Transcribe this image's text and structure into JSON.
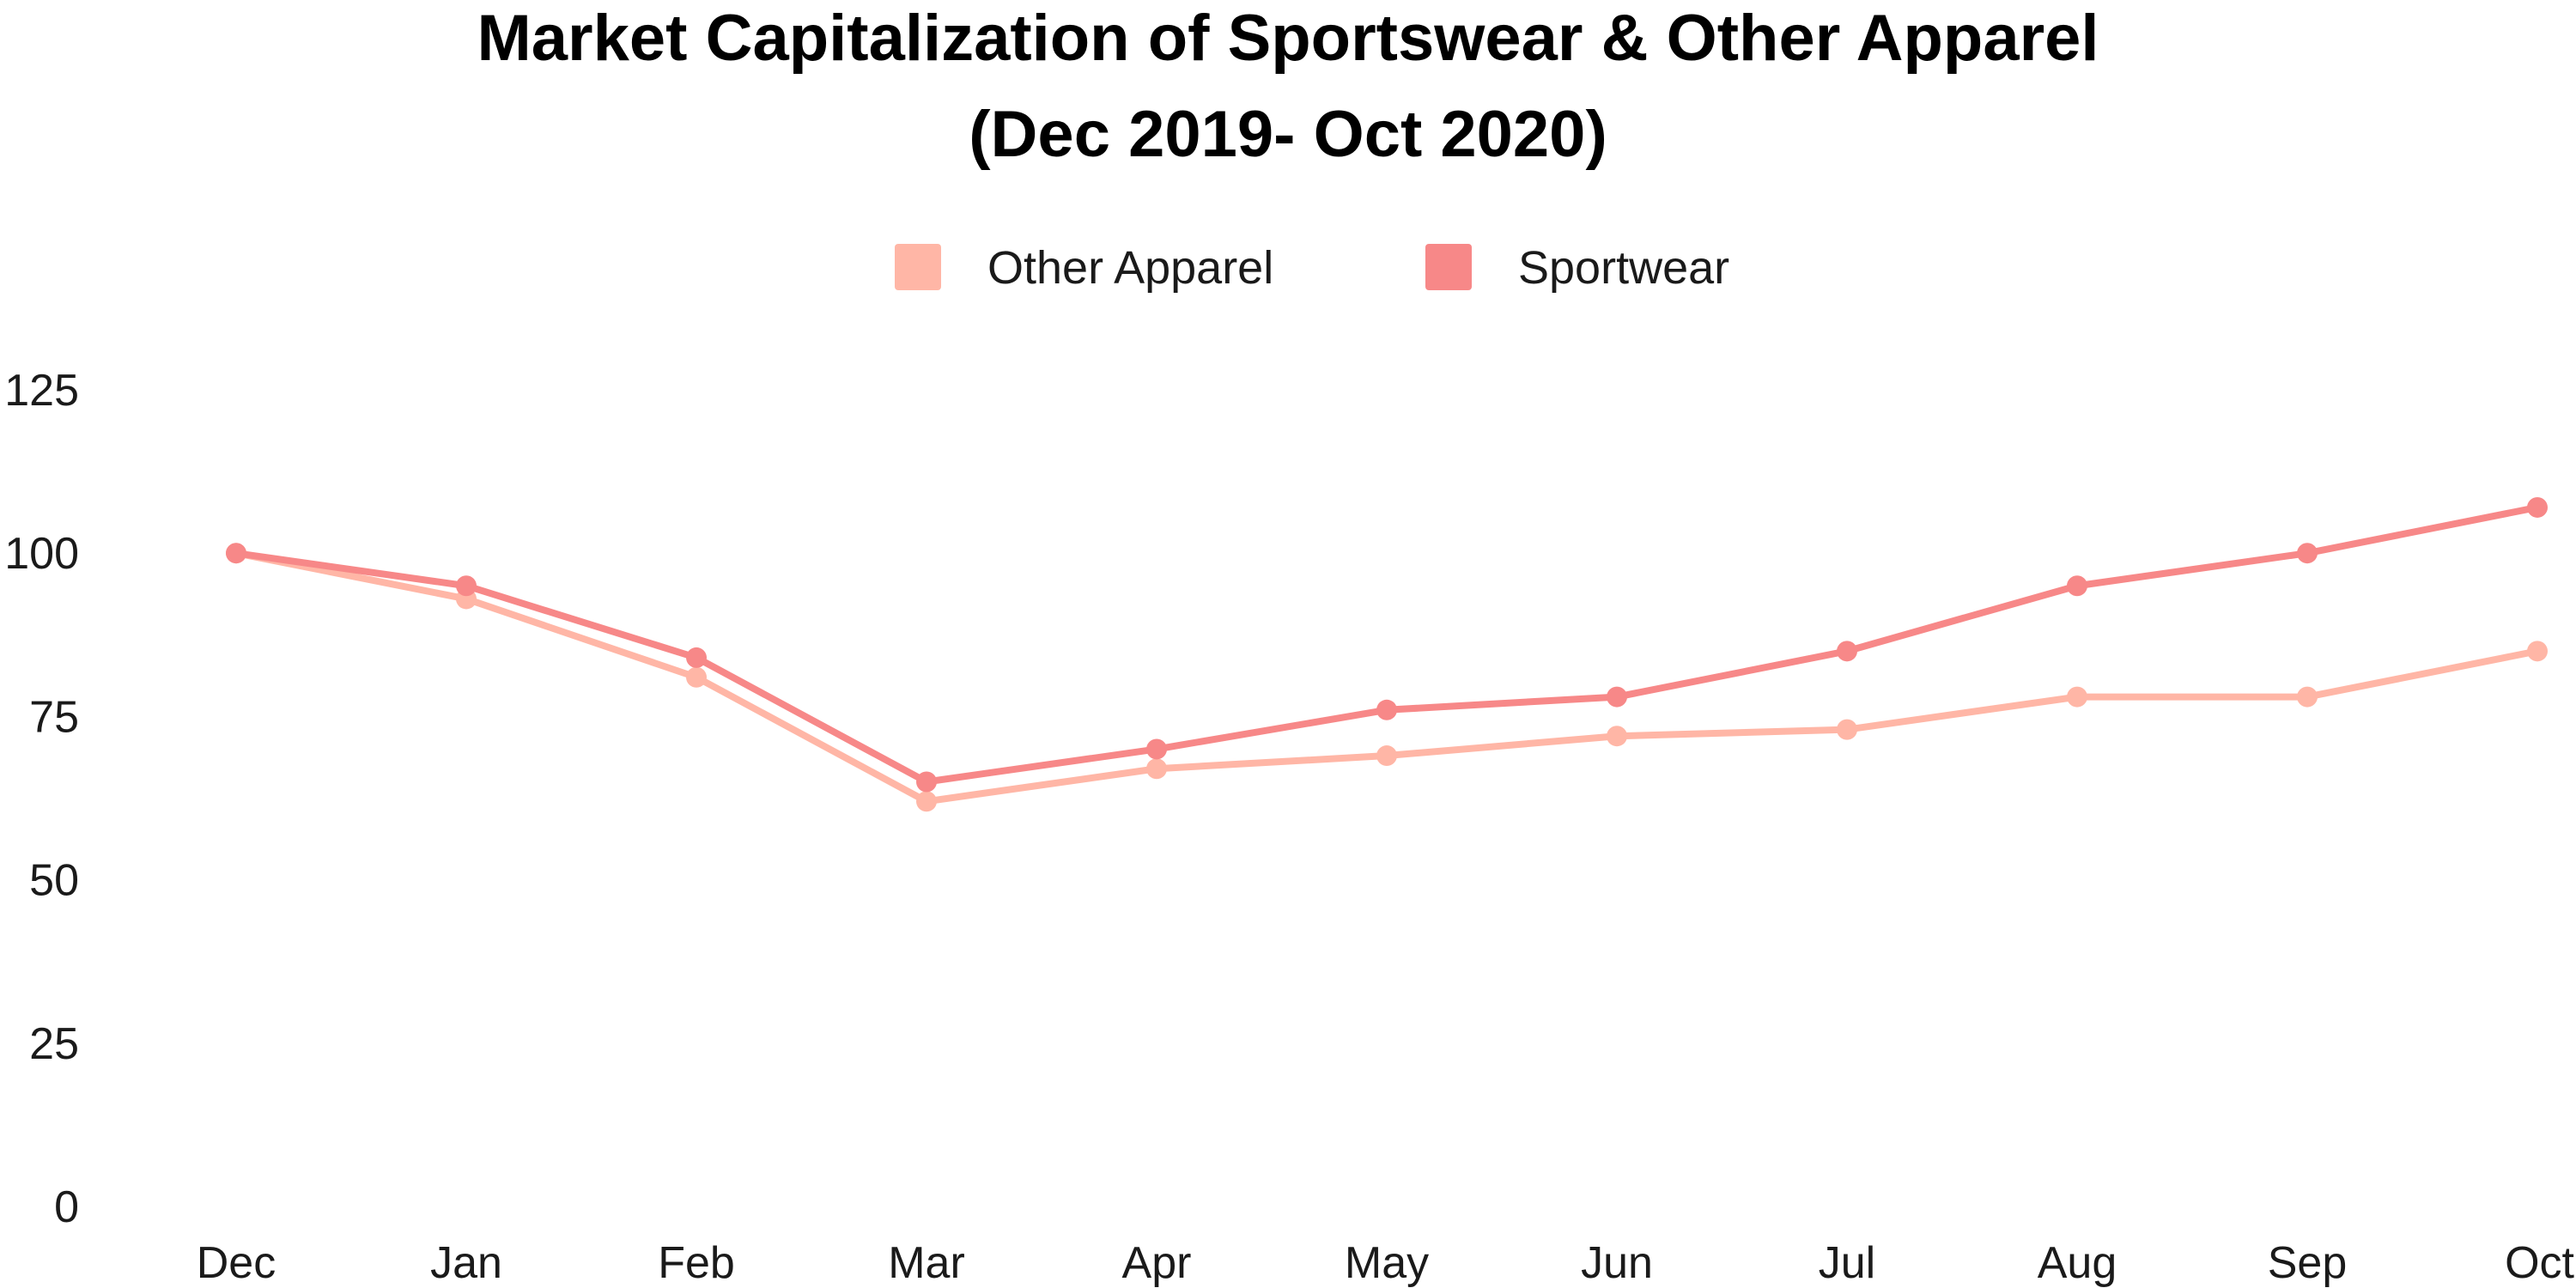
{
  "chart_data": {
    "type": "line",
    "title": "Market Capitalization of Sportswear & Other Apparel",
    "subtitle": "(Dec 2019- Oct 2020)",
    "xlabel": "",
    "ylabel": "",
    "categories": [
      "Dec",
      "Jan",
      "Feb",
      "Mar",
      "Apr",
      "May",
      "Jun",
      "Jul",
      "Aug",
      "Sep",
      "Oct"
    ],
    "y_ticks": [
      "0",
      "25",
      "50",
      "75",
      "100",
      "125"
    ],
    "ylim": [
      0,
      125
    ],
    "grid": false,
    "legend_position": "top-center",
    "series": [
      {
        "name": "Other Apparel",
        "color": "#FFB6A6",
        "values": [
          100,
          93,
          81,
          62,
          67,
          69,
          72,
          73,
          78,
          78,
          85
        ]
      },
      {
        "name": "Sportwear",
        "color": "#F78888",
        "values": [
          100,
          95,
          84,
          65,
          70,
          76,
          78,
          85,
          95,
          100,
          107
        ]
      }
    ]
  }
}
